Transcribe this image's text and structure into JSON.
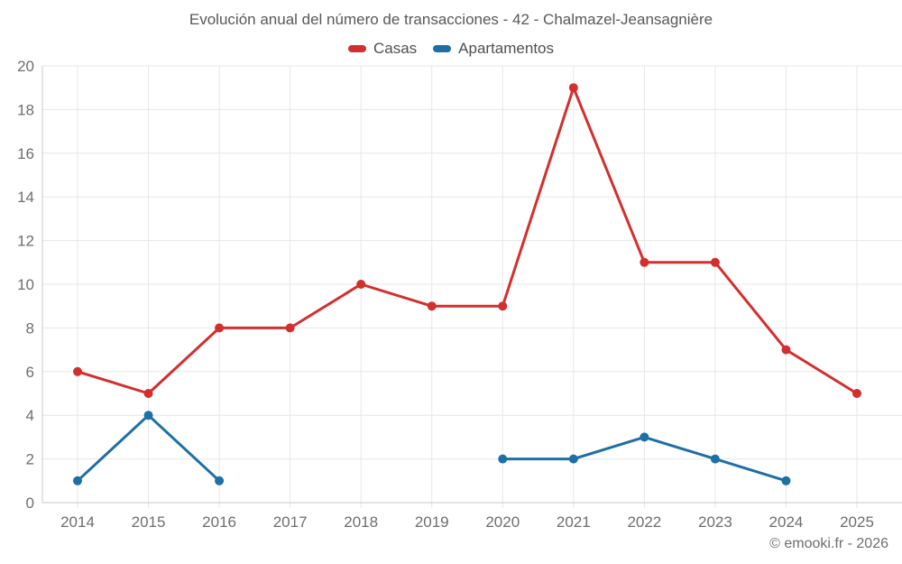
{
  "chart_data": {
    "type": "line",
    "title": "Evolución anual del número de transacciones - 42 - Chalmazel-Jeansagnière",
    "x": [
      2014,
      2015,
      2016,
      2017,
      2018,
      2019,
      2020,
      2021,
      2022,
      2023,
      2024,
      2025
    ],
    "series": [
      {
        "name": "Casas",
        "color": "#d32f2e",
        "values": [
          6,
          5,
          8,
          8,
          10,
          9,
          9,
          19,
          11,
          11,
          7,
          5
        ]
      },
      {
        "name": "Apartamentos",
        "color": "#1d6fa5",
        "values": [
          1,
          4,
          1,
          null,
          null,
          null,
          2,
          2,
          3,
          2,
          1,
          null
        ]
      }
    ],
    "ylim": [
      0,
      20
    ],
    "ytick_step": 2,
    "grid": true,
    "legend_position": "top",
    "grid_color": "#e7e7e7",
    "axis_color": "#c8c8c8",
    "tick_label_color": "#6e6e6e"
  },
  "footer": {
    "copyright": "© emooki.fr - 2026"
  }
}
